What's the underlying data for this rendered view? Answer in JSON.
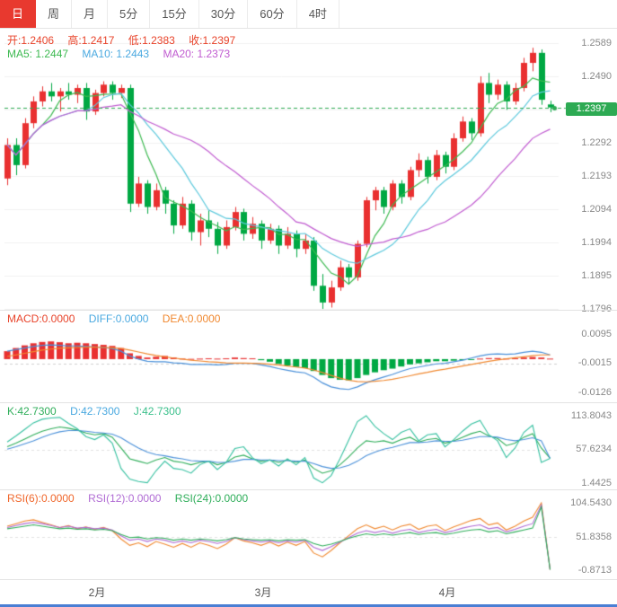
{
  "tabs": [
    {
      "label": "日",
      "active": true
    },
    {
      "label": "周",
      "active": false
    },
    {
      "label": "月",
      "active": false
    },
    {
      "label": "5分",
      "active": false
    },
    {
      "label": "15分",
      "active": false
    },
    {
      "label": "30分",
      "active": false
    },
    {
      "label": "60分",
      "active": false
    },
    {
      "label": "4时",
      "active": false
    }
  ],
  "chart_data": [
    {
      "type": "candlestick",
      "name": "price-panel",
      "legend": {
        "open": "开:1.2406",
        "high": "高:1.2417",
        "low": "低:1.2383",
        "close": "收:1.2397",
        "ma5": "MA5: 1.2447",
        "ma10": "MA10: 1.2443",
        "ma20": "MA20: 1.2373"
      },
      "y_ticks": [
        "1.2589",
        "1.2490",
        "1.2392",
        "1.2292",
        "1.2193",
        "1.2094",
        "1.1994",
        "1.1895",
        "1.1796"
      ],
      "y_range": [
        1.1796,
        1.2589
      ],
      "x_ticks": [
        {
          "label": "2月",
          "index": 10
        },
        {
          "label": "3月",
          "index": 29
        },
        {
          "label": "4月",
          "index": 50
        }
      ],
      "last_price": "1.2397",
      "last_price_value": 1.2397,
      "colors": {
        "up": "#e93030",
        "down": "#00a843",
        "ma5": "#3cb950",
        "ma10": "#5bc8dc",
        "ma20": "#c05bd0",
        "last_price": "#2daa53"
      },
      "ohlc": [
        [
          1.2185,
          1.2305,
          1.2165,
          1.2285
        ],
        [
          1.2285,
          1.2305,
          1.2195,
          1.2225
        ],
        [
          1.2225,
          1.2365,
          1.2215,
          1.235
        ],
        [
          1.235,
          1.243,
          1.2335,
          1.2415
        ],
        [
          1.2415,
          1.246,
          1.24,
          1.2445
        ],
        [
          1.2445,
          1.247,
          1.2415,
          1.243
        ],
        [
          1.243,
          1.2455,
          1.2385,
          1.2445
        ],
        [
          1.2445,
          1.247,
          1.242,
          1.2435
        ],
        [
          1.2435,
          1.2465,
          1.241,
          1.2455
        ],
        [
          1.2455,
          1.247,
          1.236,
          1.2385
        ],
        [
          1.2385,
          1.245,
          1.2375,
          1.244
        ],
        [
          1.244,
          1.2475,
          1.243,
          1.2465
        ],
        [
          1.2465,
          1.2475,
          1.242,
          1.244
        ],
        [
          1.244,
          1.2465,
          1.2425,
          1.2455
        ],
        [
          1.2455,
          1.2465,
          1.2085,
          1.211
        ],
        [
          1.211,
          1.219,
          1.21,
          1.217
        ],
        [
          1.217,
          1.218,
          1.208,
          1.21
        ],
        [
          1.21,
          1.217,
          1.209,
          1.215
        ],
        [
          1.215,
          1.216,
          1.208,
          1.211
        ],
        [
          1.211,
          1.212,
          1.202,
          1.2045
        ],
        [
          1.2045,
          1.213,
          1.2035,
          1.211
        ],
        [
          1.211,
          1.212,
          1.2,
          1.2025
        ],
        [
          1.2025,
          1.208,
          1.1985,
          1.206
        ],
        [
          1.206,
          1.209,
          1.201,
          1.2035
        ],
        [
          1.2035,
          1.2055,
          1.196,
          1.1985
        ],
        [
          1.1985,
          1.206,
          1.1975,
          1.204
        ],
        [
          1.204,
          1.21,
          1.203,
          1.2085
        ],
        [
          1.2085,
          1.2095,
          1.2,
          1.202
        ],
        [
          1.202,
          1.207,
          1.2005,
          1.205
        ],
        [
          1.205,
          1.206,
          1.1975,
          1.2
        ],
        [
          1.2,
          1.205,
          1.199,
          1.2035
        ],
        [
          1.2035,
          1.2045,
          1.196,
          1.1985
        ],
        [
          1.1985,
          1.204,
          1.1975,
          1.202
        ],
        [
          1.202,
          1.203,
          1.195,
          1.1975
        ],
        [
          1.1975,
          1.202,
          1.196,
          1.2
        ],
        [
          1.2,
          1.201,
          1.185,
          1.1865
        ],
        [
          1.1865,
          1.19,
          1.1796,
          1.1815
        ],
        [
          1.1815,
          1.188,
          1.18,
          1.186
        ],
        [
          1.186,
          1.194,
          1.185,
          1.192
        ],
        [
          1.192,
          1.193,
          1.187,
          1.189
        ],
        [
          1.189,
          1.2,
          1.188,
          1.199
        ],
        [
          1.199,
          1.213,
          1.198,
          1.212
        ],
        [
          1.212,
          1.216,
          1.209,
          1.215
        ],
        [
          1.215,
          1.216,
          1.208,
          1.21
        ],
        [
          1.21,
          1.218,
          1.209,
          1.217
        ],
        [
          1.217,
          1.218,
          1.211,
          1.213
        ],
        [
          1.213,
          1.222,
          1.212,
          1.221
        ],
        [
          1.221,
          1.226,
          1.219,
          1.224
        ],
        [
          1.224,
          1.225,
          1.217,
          1.219
        ],
        [
          1.219,
          1.227,
          1.218,
          1.2255
        ],
        [
          1.2255,
          1.2265,
          1.22,
          1.222
        ],
        [
          1.222,
          1.232,
          1.221,
          1.2305
        ],
        [
          1.2305,
          1.237,
          1.2295,
          1.2355
        ],
        [
          1.2355,
          1.2365,
          1.23,
          1.232
        ],
        [
          1.232,
          1.249,
          1.231,
          1.247
        ],
        [
          1.247,
          1.25,
          1.241,
          1.2435
        ],
        [
          1.2435,
          1.248,
          1.242,
          1.2465
        ],
        [
          1.2465,
          1.2475,
          1.239,
          1.2415
        ],
        [
          1.2415,
          1.247,
          1.2405,
          1.2455
        ],
        [
          1.2455,
          1.2545,
          1.2445,
          1.253
        ],
        [
          1.253,
          1.2575,
          1.2505,
          1.256
        ],
        [
          1.256,
          1.257,
          1.2405,
          1.242
        ],
        [
          1.2406,
          1.2417,
          1.2383,
          1.2397
        ]
      ]
    },
    {
      "type": "bar",
      "name": "macd-panel",
      "legend": {
        "macd": "MACD:0.0000",
        "diff": "DIFF:0.0000",
        "dea": "DEA:0.0000"
      },
      "y_ticks": [
        "0.0095",
        "-0.0015",
        "-0.0126"
      ],
      "y_range": [
        -0.0126,
        0.0095
      ],
      "colors": {
        "positive": "#e93030",
        "negative": "#00a843",
        "diff": "#4a90d9",
        "dea": "#f0882f"
      },
      "histogram": [
        0.003,
        0.0042,
        0.0052,
        0.006,
        0.0065,
        0.0067,
        0.0064,
        0.006,
        0.0062,
        0.006,
        0.0057,
        0.0054,
        0.005,
        0.0042,
        0.0022,
        0.0012,
        0.0006,
        0.0009,
        0.0012,
        0.0006,
        0.0002,
        0.0001,
        0.0002,
        0.0003,
        0.0002,
        0.0003,
        0.0006,
        0.0004,
        0.0003,
        -0.0004,
        -0.001,
        -0.0018,
        -0.0024,
        -0.003,
        -0.0034,
        -0.0045,
        -0.006,
        -0.0072,
        -0.0078,
        -0.008,
        -0.0072,
        -0.006,
        -0.005,
        -0.0042,
        -0.0036,
        -0.0028,
        -0.002,
        -0.0016,
        -0.0012,
        -0.0008,
        -0.0008,
        -0.0006,
        -0.0004,
        -0.0002,
        0.0002,
        0.0004,
        0.0004,
        0.0002,
        0.0003,
        0.0006,
        0.0008,
        0.0006,
        0.0002
      ],
      "diff": [
        0.003,
        0.0036,
        0.0042,
        0.0048,
        0.0052,
        0.0054,
        0.0052,
        0.005,
        0.005,
        0.0048,
        0.0046,
        0.0044,
        0.004,
        0.003,
        0.0012,
        0.0,
        -0.0008,
        -0.001,
        -0.001,
        -0.0014,
        -0.0016,
        -0.002,
        -0.002,
        -0.002,
        -0.0022,
        -0.002,
        -0.0016,
        -0.0016,
        -0.0016,
        -0.0022,
        -0.0028,
        -0.0036,
        -0.0042,
        -0.0048,
        -0.0052,
        -0.0068,
        -0.009,
        -0.0105,
        -0.0112,
        -0.0115,
        -0.0105,
        -0.009,
        -0.0078,
        -0.0068,
        -0.0058,
        -0.0046,
        -0.0036,
        -0.003,
        -0.0024,
        -0.0018,
        -0.0016,
        -0.001,
        -0.0004,
        0.0004,
        0.0012,
        0.0018,
        0.002,
        0.0018,
        0.002,
        0.0026,
        0.003,
        0.0026,
        0.0016
      ],
      "dea": [
        0.001,
        0.0016,
        0.0022,
        0.0028,
        0.0034,
        0.0038,
        0.0041,
        0.0043,
        0.0044,
        0.0045,
        0.0045,
        0.0044,
        0.0043,
        0.004,
        0.0034,
        0.0027,
        0.002,
        0.0014,
        0.0009,
        0.0004,
        0.0,
        -0.0004,
        -0.0007,
        -0.001,
        -0.0012,
        -0.0014,
        -0.0015,
        -0.0015,
        -0.0016,
        -0.0017,
        -0.0019,
        -0.0022,
        -0.0026,
        -0.003,
        -0.0034,
        -0.0041,
        -0.0051,
        -0.0062,
        -0.0072,
        -0.008,
        -0.0085,
        -0.0086,
        -0.0084,
        -0.0081,
        -0.0076,
        -0.007,
        -0.0063,
        -0.0056,
        -0.005,
        -0.0043,
        -0.0038,
        -0.0032,
        -0.0026,
        -0.002,
        -0.0014,
        -0.0008,
        -0.0003,
        0.0001,
        0.0005,
        0.0009,
        0.0013,
        0.0016,
        0.0016
      ]
    },
    {
      "type": "line",
      "name": "kdj-panel",
      "legend": {
        "k": "K:42.7300",
        "d": "D:42.7300",
        "j": "J:42.7300"
      },
      "y_ticks": [
        "113.8043",
        "57.6234",
        "1.4425"
      ],
      "y_range": [
        1.4425,
        113.8043
      ],
      "series": [
        {
          "name": "K",
          "color": "#2fae5a",
          "values": [
            62,
            68,
            75,
            82,
            88,
            92,
            95,
            93,
            90,
            85,
            82,
            84,
            78,
            60,
            42,
            38,
            34,
            40,
            44,
            38,
            36,
            32,
            36,
            38,
            32,
            36,
            45,
            48,
            42,
            38,
            40,
            36,
            40,
            36,
            40,
            26,
            18,
            22,
            32,
            45,
            60,
            72,
            70,
            72,
            68,
            74,
            78,
            70,
            74,
            76,
            68,
            72,
            78,
            84,
            88,
            80,
            76,
            64,
            68,
            78,
            84,
            60,
            42.73
          ]
        },
        {
          "name": "D",
          "color": "#4a90d9",
          "values": [
            58,
            62,
            67,
            72,
            78,
            83,
            87,
            89,
            89,
            88,
            86,
            85,
            83,
            77,
            68,
            60,
            53,
            49,
            47,
            44,
            42,
            39,
            38,
            38,
            36,
            36,
            38,
            41,
            41,
            40,
            40,
            39,
            39,
            38,
            38,
            34,
            29,
            26,
            27,
            31,
            38,
            47,
            53,
            58,
            61,
            65,
            69,
            69,
            70,
            72,
            71,
            71,
            73,
            76,
            79,
            79,
            78,
            74,
            72,
            74,
            77,
            72,
            42.73
          ]
        },
        {
          "name": "J",
          "color": "#35c0a0",
          "values": [
            70,
            80,
            91,
            102,
            108,
            110,
            111,
            101,
            92,
            79,
            74,
            82,
            68,
            26,
            8,
            4,
            2,
            22,
            38,
            26,
            24,
            18,
            32,
            38,
            24,
            36,
            59,
            62,
            44,
            34,
            40,
            30,
            42,
            32,
            44,
            10,
            2,
            14,
            42,
            73,
            104,
            113.8,
            96,
            84,
            74,
            86,
            92,
            72,
            82,
            84,
            62,
            74,
            88,
            100,
            106,
            82,
            72,
            44,
            60,
            86,
            98,
            36,
            42.73
          ]
        }
      ]
    },
    {
      "type": "line",
      "name": "rsi-panel",
      "legend": {
        "rsi6": "RSI(6):0.0000",
        "rsi12": "RSI(12):0.0000",
        "rsi24": "RSI(24):0.0000"
      },
      "y_ticks": [
        "104.5430",
        "51.8358",
        "-0.8713"
      ],
      "y_range": [
        -0.8713,
        104.543
      ],
      "series": [
        {
          "name": "RSI6",
          "color": "#f0882f",
          "values": [
            68,
            72,
            76,
            78,
            74,
            70,
            66,
            69,
            64,
            67,
            63,
            66,
            61,
            48,
            38,
            42,
            36,
            44,
            40,
            35,
            41,
            35,
            42,
            38,
            33,
            40,
            50,
            45,
            42,
            38,
            43,
            37,
            43,
            38,
            44,
            26,
            20,
            30,
            42,
            53,
            64,
            70,
            64,
            68,
            62,
            68,
            71,
            63,
            68,
            70,
            61,
            67,
            72,
            77,
            80,
            70,
            73,
            62,
            68,
            76,
            82,
            104.5,
            0
          ]
        },
        {
          "name": "RSI12",
          "color": "#b06bd4",
          "values": [
            66,
            69,
            72,
            74,
            72,
            69,
            66,
            68,
            65,
            66,
            64,
            65,
            62,
            53,
            46,
            48,
            44,
            48,
            46,
            42,
            45,
            42,
            46,
            44,
            41,
            44,
            50,
            47,
            45,
            43,
            45,
            42,
            45,
            43,
            46,
            35,
            30,
            36,
            43,
            50,
            57,
            61,
            58,
            61,
            57,
            61,
            63,
            58,
            61,
            63,
            58,
            61,
            65,
            68,
            70,
            64,
            66,
            59,
            63,
            68,
            72,
            101,
            0
          ]
        },
        {
          "name": "RSI24",
          "color": "#2fae5a",
          "values": [
            64,
            66,
            68,
            70,
            68,
            66,
            64,
            65,
            63,
            64,
            62,
            63,
            61,
            55,
            50,
            51,
            48,
            50,
            49,
            46,
            48,
            46,
            48,
            47,
            45,
            47,
            50,
            48,
            47,
            46,
            47,
            45,
            47,
            46,
            47,
            41,
            37,
            40,
            44,
            49,
            53,
            56,
            54,
            56,
            54,
            56,
            58,
            55,
            57,
            58,
            55,
            57,
            60,
            62,
            63,
            59,
            61,
            56,
            59,
            62,
            65,
            98,
            0
          ]
        }
      ]
    }
  ]
}
